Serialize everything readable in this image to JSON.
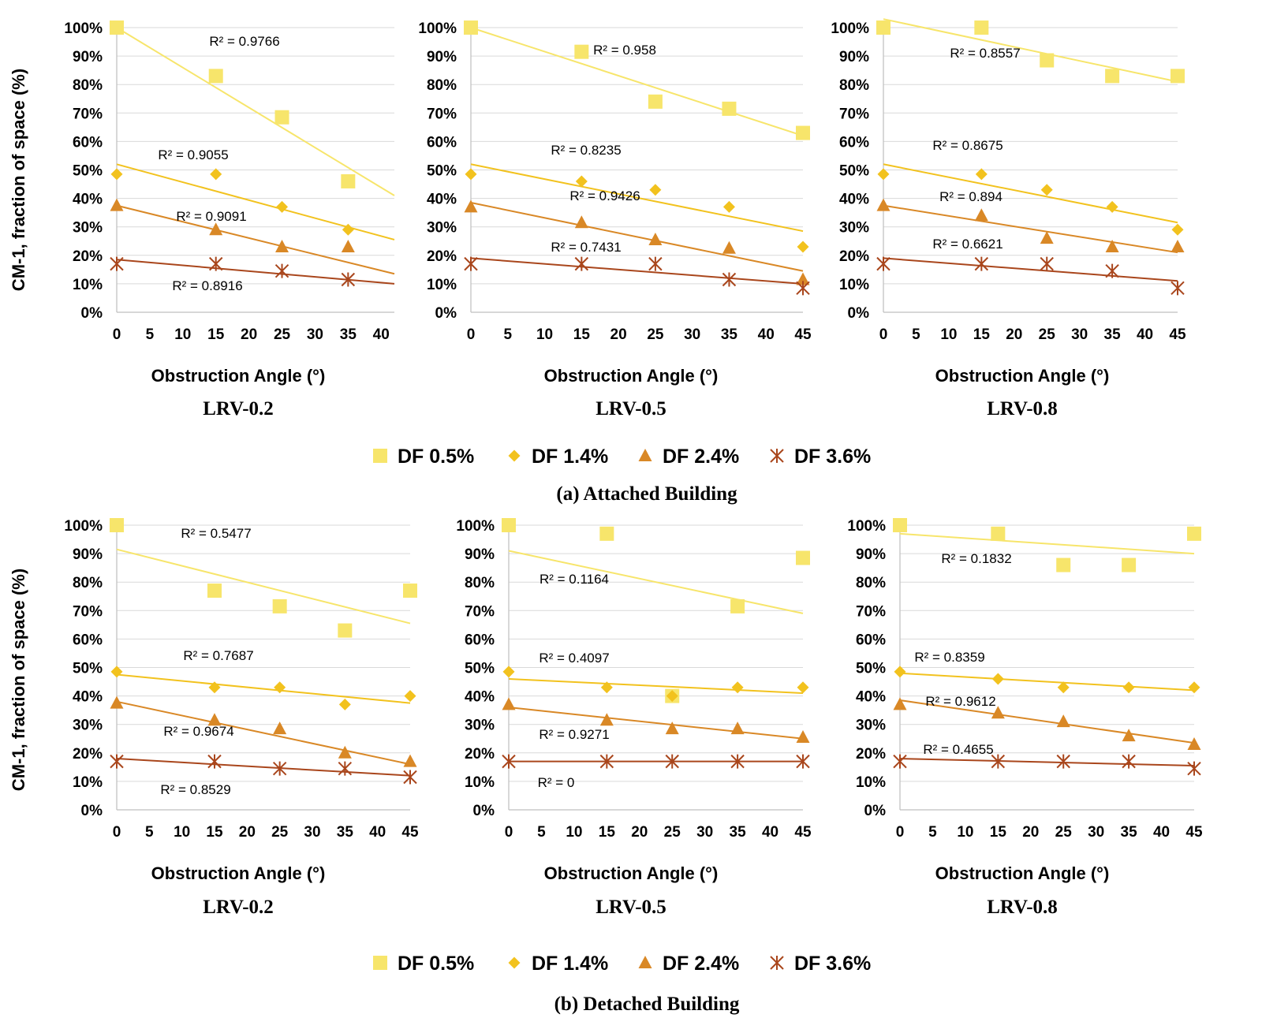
{
  "legend": [
    {
      "label": "DF 0.5%",
      "color": "#f7e56b",
      "marker": "square"
    },
    {
      "label": "DF 1.4%",
      "color": "#f2c21e",
      "marker": "diamond"
    },
    {
      "label": "DF 2.4%",
      "color": "#d98826",
      "marker": "triangle"
    },
    {
      "label": "DF 3.6%",
      "color": "#a9461c",
      "marker": "star"
    }
  ],
  "series_line_colors": [
    "#f7e56b",
    "#f2c21e",
    "#d98826",
    "#a9461c"
  ],
  "y_axis_label": "CM-1, fraction of space (%)",
  "x_axis_label": "Obstruction Angle (°)",
  "y_ticks": [
    "0%",
    "10%",
    "20%",
    "30%",
    "40%",
    "50%",
    "60%",
    "70%",
    "80%",
    "90%",
    "100%"
  ],
  "captions": [
    "(a)   Attached Building",
    "(b)   Detached Building"
  ],
  "chart_data": [
    {
      "type": "scatter",
      "title": "LRV-0.2",
      "group": "Attached Building",
      "xlabel": "Obstruction Angle (°)",
      "ylabel": "CM-1, fraction of space (%)",
      "x_ticks": [
        "0",
        "5",
        "10",
        "15",
        "20",
        "25",
        "30",
        "35",
        "40"
      ],
      "xlim": [
        0,
        42
      ],
      "ylim": [
        0,
        100
      ],
      "x": [
        0,
        15,
        25,
        35
      ],
      "series": [
        {
          "name": "DF 0.5%",
          "values": [
            100,
            83,
            68.5,
            46
          ],
          "trend": [
            100,
            41
          ],
          "r2": "R² = 0.9766"
        },
        {
          "name": "DF 1.4%",
          "values": [
            48.5,
            48.5,
            37,
            29
          ],
          "trend": [
            52,
            25.5
          ],
          "r2": "R² = 0.9055"
        },
        {
          "name": "DF 2.4%",
          "values": [
            37.5,
            29,
            23,
            23
          ],
          "trend": [
            37.5,
            13.5
          ],
          "r2": "R² = 0.9091"
        },
        {
          "name": "DF 3.6%",
          "values": [
            17,
            17,
            14.5,
            11.5
          ],
          "trend": [
            18.5,
            10
          ],
          "r2": "R² = 0.8916"
        }
      ]
    },
    {
      "type": "scatter",
      "title": "LRV-0.5",
      "group": "Attached Building",
      "xlabel": "Obstruction Angle (°)",
      "ylabel": "",
      "x_ticks": [
        "0",
        "5",
        "10",
        "15",
        "20",
        "25",
        "30",
        "35",
        "40",
        "45"
      ],
      "xlim": [
        0,
        45
      ],
      "ylim": [
        0,
        100
      ],
      "x": [
        0,
        15,
        25,
        35,
        45
      ],
      "series": [
        {
          "name": "DF 0.5%",
          "values": [
            100,
            91.5,
            74,
            71.5,
            63
          ],
          "trend": [
            100,
            62
          ],
          "r2": "R² = 0.958"
        },
        {
          "name": "DF 1.4%",
          "values": [
            48.5,
            46,
            43,
            37,
            23
          ],
          "trend": [
            52,
            28.5
          ],
          "r2": "R² = 0.8235"
        },
        {
          "name": "DF 2.4%",
          "values": [
            37,
            31.5,
            25.5,
            22.5,
            11.5
          ],
          "trend": [
            38.5,
            14.5
          ],
          "r2": "R² = 0.9426"
        },
        {
          "name": "DF 3.6%",
          "values": [
            17,
            17,
            17,
            11.5,
            8.5
          ],
          "trend": [
            19,
            10
          ],
          "r2": "R² = 0.7431"
        }
      ]
    },
    {
      "type": "scatter",
      "title": "LRV-0.8",
      "group": "Attached Building",
      "xlabel": "Obstruction Angle (°)",
      "ylabel": "",
      "x_ticks": [
        "0",
        "5",
        "10",
        "15",
        "20",
        "25",
        "30",
        "35",
        "40",
        "45"
      ],
      "xlim": [
        0,
        45
      ],
      "ylim": [
        0,
        100
      ],
      "x": [
        0,
        15,
        25,
        35,
        45
      ],
      "series": [
        {
          "name": "DF 0.5%",
          "values": [
            100,
            100,
            88.5,
            83,
            83
          ],
          "trend": [
            103,
            81
          ],
          "r2": "R² = 0.8557"
        },
        {
          "name": "DF 1.4%",
          "values": [
            48.5,
            48.5,
            43,
            37,
            29
          ],
          "trend": [
            52,
            31.5
          ],
          "r2": "R² = 0.8675"
        },
        {
          "name": "DF 2.4%",
          "values": [
            37.5,
            34,
            26,
            23,
            23
          ],
          "trend": [
            37.5,
            21
          ],
          "r2": "R² = 0.894"
        },
        {
          "name": "DF 3.6%",
          "values": [
            17,
            17,
            17,
            14.5,
            8.5
          ],
          "trend": [
            19,
            11
          ],
          "r2": "R² = 0.6621"
        }
      ]
    },
    {
      "type": "scatter",
      "title": "LRV-0.2",
      "group": "Detached Building",
      "xlabel": "Obstruction Angle (°)",
      "ylabel": "CM-1, fraction of space (%)",
      "x_ticks": [
        "0",
        "5",
        "10",
        "15",
        "20",
        "25",
        "30",
        "35",
        "40",
        "45"
      ],
      "xlim": [
        0,
        45
      ],
      "ylim": [
        0,
        100
      ],
      "x": [
        0,
        15,
        25,
        35,
        45
      ],
      "series": [
        {
          "name": "DF 0.5%",
          "values": [
            100,
            77,
            71.5,
            63,
            77
          ],
          "trend": [
            91.5,
            65.5
          ],
          "r2": "R² = 0.5477"
        },
        {
          "name": "DF 1.4%",
          "values": [
            48.5,
            43,
            43,
            37,
            40
          ],
          "trend": [
            47.5,
            37.5
          ],
          "r2": "R² = 0.7687"
        },
        {
          "name": "DF 2.4%",
          "values": [
            37.5,
            31.5,
            28.5,
            20,
            17
          ],
          "trend": [
            38,
            16
          ],
          "r2": "R² = 0.9674"
        },
        {
          "name": "DF 3.6%",
          "values": [
            17,
            17,
            14.5,
            14.5,
            11.5
          ],
          "trend": [
            18,
            12
          ],
          "r2": "R² = 0.8529"
        }
      ]
    },
    {
      "type": "scatter",
      "title": "LRV-0.5",
      "group": "Detached Building",
      "xlabel": "Obstruction Angle (°)",
      "ylabel": "",
      "x_ticks": [
        "0",
        "5",
        "10",
        "15",
        "20",
        "25",
        "30",
        "35",
        "40",
        "45"
      ],
      "xlim": [
        0,
        45
      ],
      "ylim": [
        0,
        100
      ],
      "x": [
        0,
        15,
        25,
        35,
        45
      ],
      "series": [
        {
          "name": "DF 0.5%",
          "values": [
            100,
            97,
            40,
            71.5,
            88.5
          ],
          "trend": [
            91,
            69
          ],
          "r2": "R² = 0.1164"
        },
        {
          "name": "DF 1.4%",
          "values": [
            48.5,
            43,
            40,
            43,
            43
          ],
          "trend": [
            46,
            41
          ],
          "r2": "R² = 0.4097"
        },
        {
          "name": "DF 2.4%",
          "values": [
            37,
            31.5,
            28.5,
            28.5,
            25.5
          ],
          "trend": [
            36,
            25
          ],
          "r2": "R² = 0.9271"
        },
        {
          "name": "DF 3.6%",
          "values": [
            17,
            17,
            17,
            17,
            17
          ],
          "trend": [
            17,
            17
          ],
          "r2": "R² = 0"
        }
      ]
    },
    {
      "type": "scatter",
      "title": "LRV-0.8",
      "group": "Detached Building",
      "xlabel": "Obstruction Angle (°)",
      "ylabel": "",
      "x_ticks": [
        "0",
        "5",
        "10",
        "15",
        "20",
        "25",
        "30",
        "35",
        "40",
        "45"
      ],
      "xlim": [
        0,
        45
      ],
      "ylim": [
        0,
        100
      ],
      "x": [
        0,
        15,
        25,
        35,
        45
      ],
      "series": [
        {
          "name": "DF 0.5%",
          "values": [
            100,
            97,
            86,
            86,
            97
          ],
          "trend": [
            97,
            90
          ],
          "r2": "R² = 0.1832"
        },
        {
          "name": "DF 1.4%",
          "values": [
            48.5,
            46,
            43,
            43,
            43
          ],
          "trend": [
            48,
            42
          ],
          "r2": "R² = 0.8359"
        },
        {
          "name": "DF 2.4%",
          "values": [
            37,
            34,
            31,
            26,
            23
          ],
          "trend": [
            38.5,
            23.5
          ],
          "r2": "R² = 0.9612"
        },
        {
          "name": "DF 3.6%",
          "values": [
            17,
            17,
            17,
            17,
            14.5
          ],
          "trend": [
            18,
            15.5
          ],
          "r2": "R² = 0.4655"
        }
      ]
    }
  ]
}
